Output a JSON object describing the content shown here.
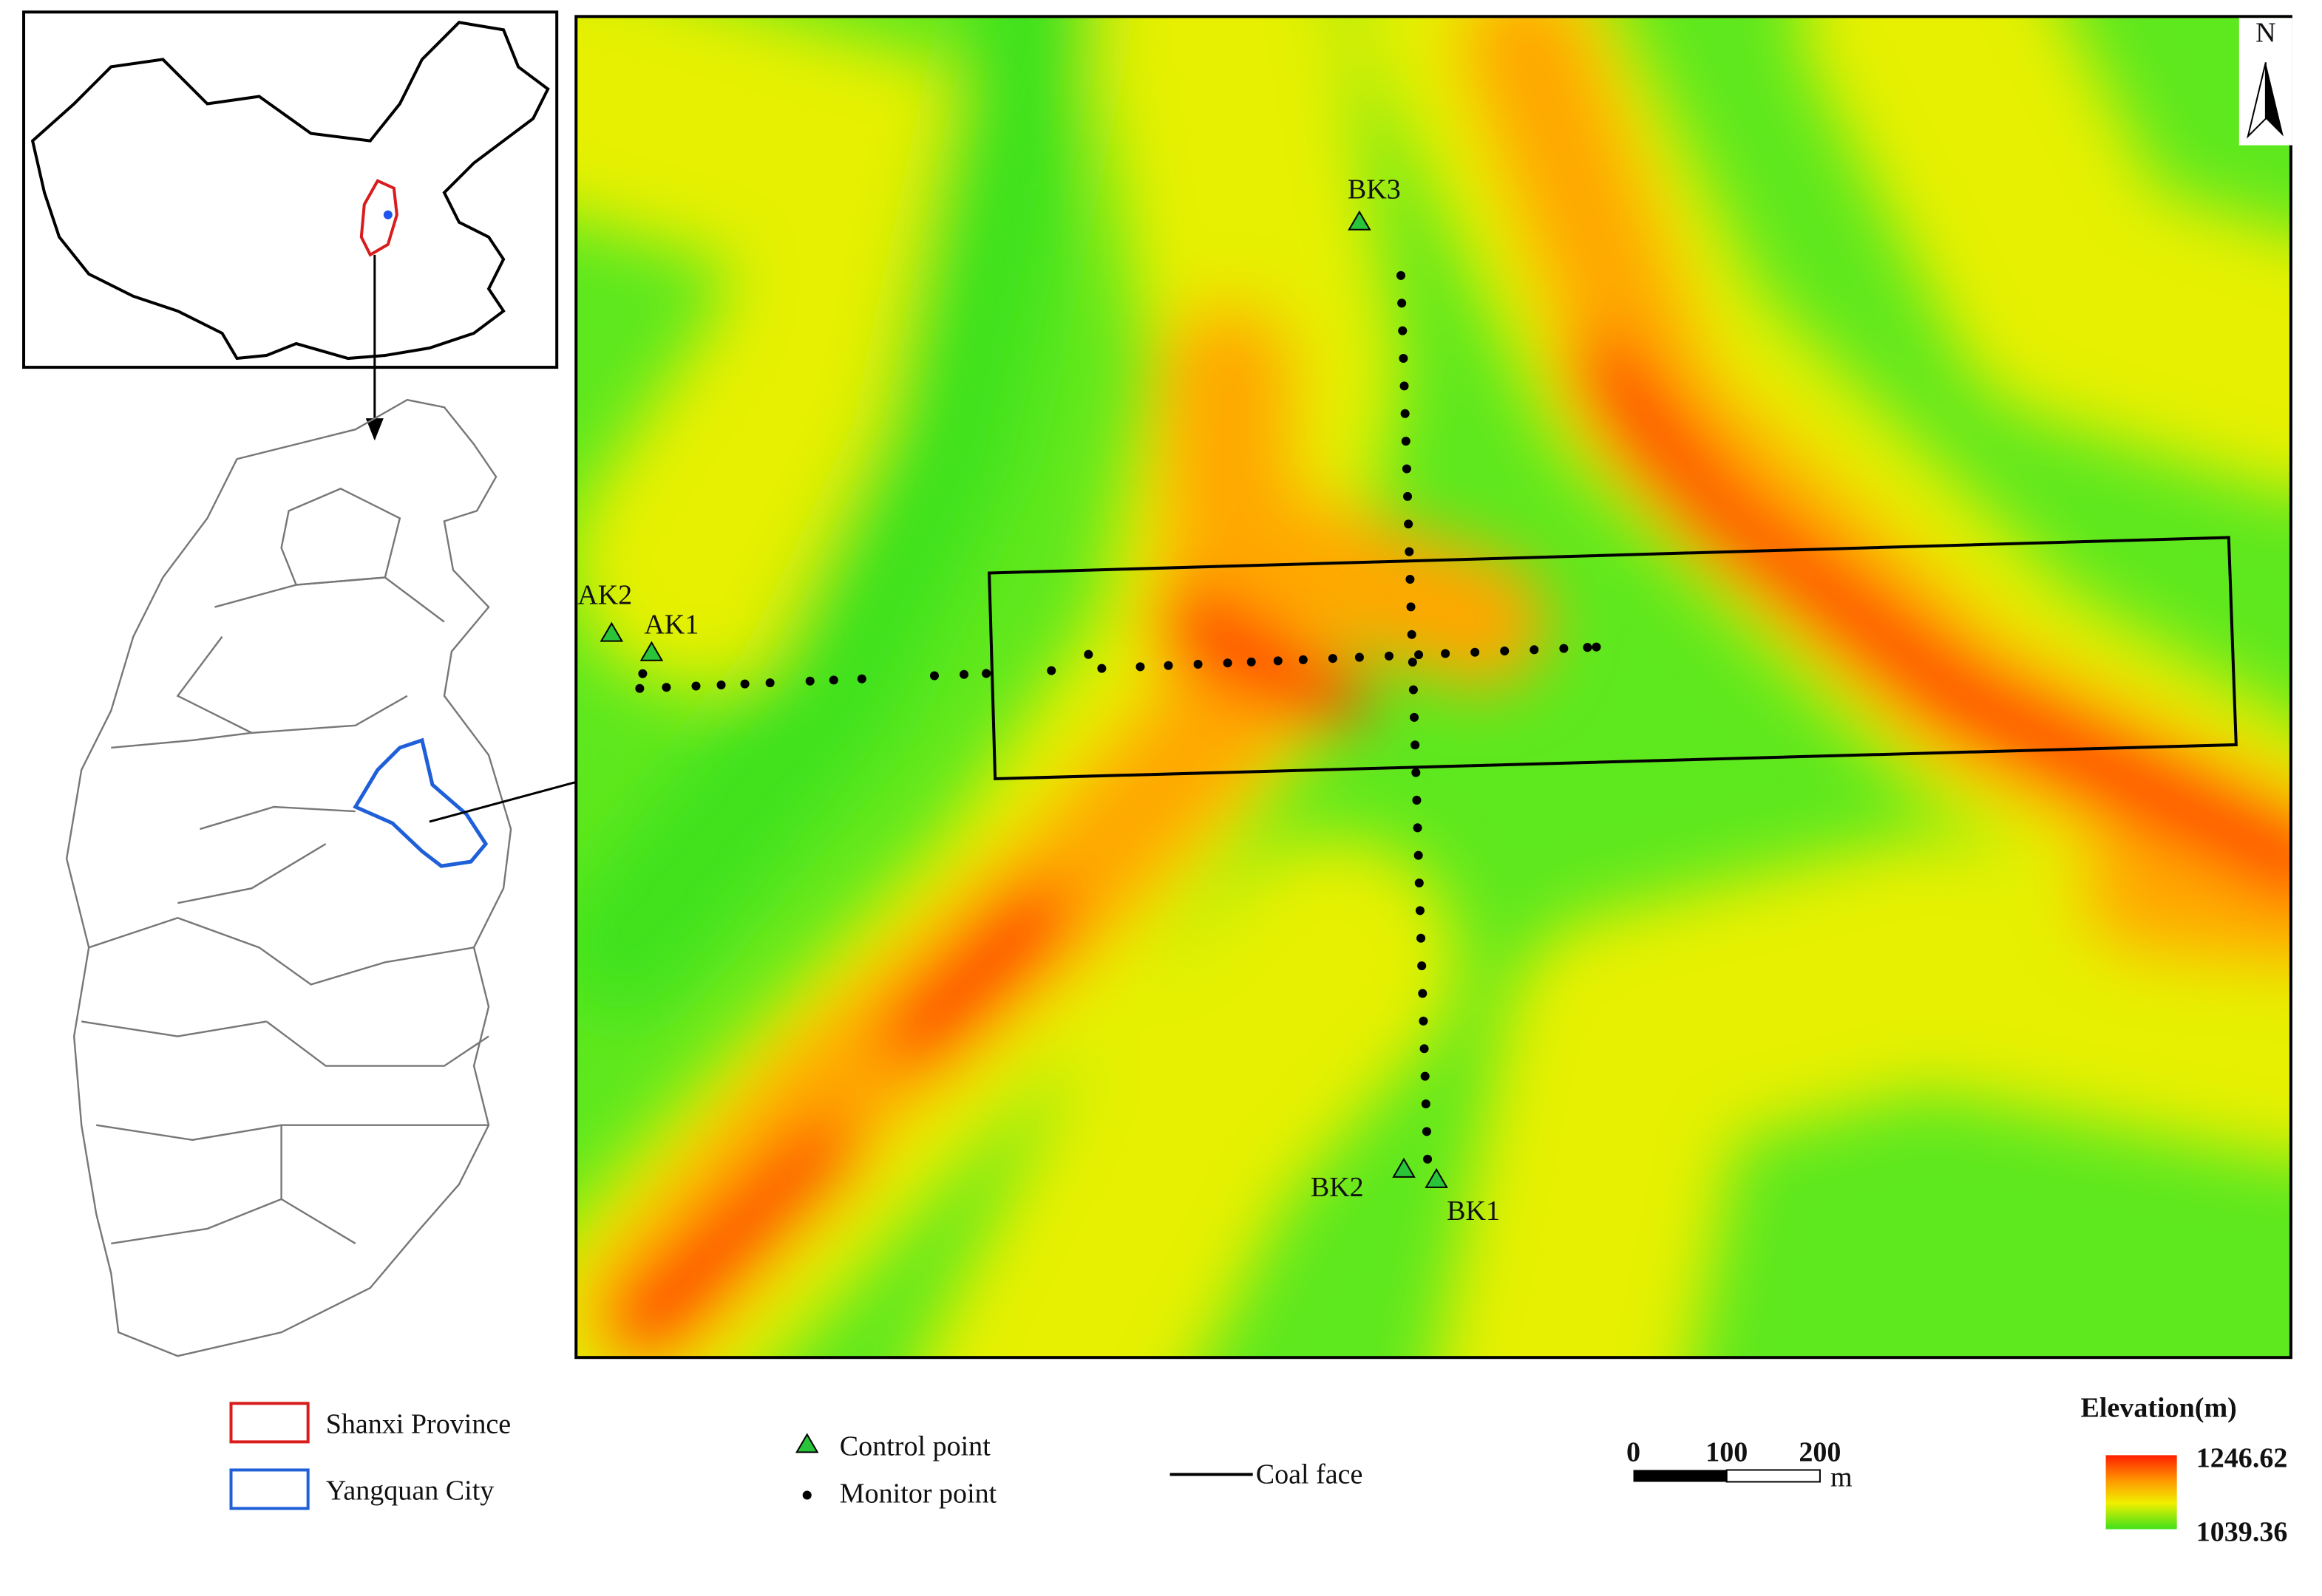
{
  "map": {
    "north": "N",
    "points": [
      {
        "label": "AK2"
      },
      {
        "label": "AK1"
      },
      {
        "label": "BK3"
      },
      {
        "label": "BK2"
      },
      {
        "label": "BK1"
      }
    ]
  },
  "legend": {
    "regions": [
      "Shanxi Province",
      "Yangquan City"
    ],
    "symbols": [
      "Control point",
      "Monitor point",
      "Coal face"
    ],
    "scale_bar": {
      "ticks": [
        "0",
        "100",
        "200"
      ],
      "unit": "m"
    },
    "elevation": {
      "title": "Elevation(m)",
      "max": "1246.62",
      "min": "1039.36"
    }
  }
}
